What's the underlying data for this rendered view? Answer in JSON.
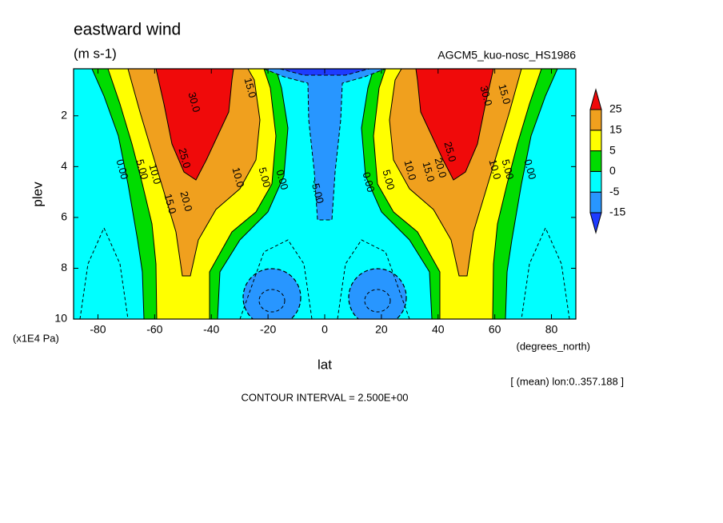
{
  "chart_data": {
    "type": "contour",
    "title": "eastward wind",
    "units": "(m s-1)",
    "subtitle": "AGCM5_kuo-nosc_HS1986",
    "y_label": "plev",
    "y_unit": "(x1E4 Pa)",
    "x_label": "lat",
    "x_unit": "(degrees_north)",
    "note": "[ (mean) lon:0..357.188 ]",
    "footer": "CONTOUR INTERVAL = 2.500E+00",
    "xlim": [
      -88.6,
      88.6
    ],
    "ylim": [
      10,
      0.15
    ],
    "xticks": [
      -80,
      -60,
      -40,
      -20,
      0,
      20,
      40,
      60,
      80
    ],
    "yticks": [
      2,
      4,
      6,
      8,
      10
    ],
    "levels": [
      -15,
      -5,
      0,
      5,
      15,
      25
    ],
    "colors": [
      "#1e3cff",
      "#2896ff",
      "#00ffff",
      "#00dc00",
      "#ffff00",
      "#f0a01e",
      "#f00a0a"
    ],
    "contour_labels": [
      {
        "value": 15,
        "label": "15.0"
      },
      {
        "value": 30,
        "label": "30.0"
      },
      {
        "value": 25,
        "label": "25.0"
      },
      {
        "value": 10,
        "label": "10.0"
      },
      {
        "value": 5,
        "label": "5.00"
      },
      {
        "value": 0,
        "label": "0.00"
      },
      {
        "value": 20,
        "label": "20.0"
      },
      {
        "value": 15,
        "label": "15.0"
      },
      {
        "value": 10,
        "label": "10.0"
      },
      {
        "value": 5,
        "label": "5.00"
      },
      {
        "value": 0,
        "label": "0.00"
      },
      {
        "value": -5,
        "label": "-5.00"
      },
      {
        "value": 0,
        "label": "0.00"
      },
      {
        "value": 5,
        "label": "5.00"
      },
      {
        "value": 10,
        "label": "10.0"
      },
      {
        "value": 15,
        "label": "15.0"
      },
      {
        "value": 20,
        "label": "20.0"
      },
      {
        "value": 25,
        "label": "25.0"
      },
      {
        "value": 10,
        "label": "10.0"
      },
      {
        "value": 5,
        "label": "5.00"
      },
      {
        "value": 0,
        "label": "0.00"
      },
      {
        "value": 30,
        "label": "30.0"
      },
      {
        "value": 15,
        "label": "15.0"
      }
    ]
  }
}
